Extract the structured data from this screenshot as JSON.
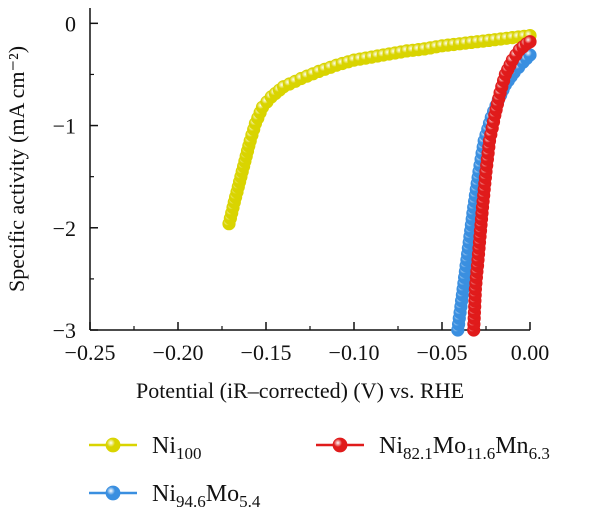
{
  "chart_data": {
    "type": "scatter",
    "xlabel": "Potential (iR–corrected) (V) vs. RHE",
    "ylabel": "Specific activity (mA cm⁻²)",
    "xlim": [
      -0.25,
      0.0
    ],
    "ylim": [
      -3.0,
      0.15
    ],
    "xticks": [
      -0.25,
      -0.2,
      -0.15,
      -0.1,
      -0.05,
      0.0
    ],
    "xtick_labels": [
      "−0.25",
      "−0.20",
      "−0.15",
      "−0.10",
      "−0.05",
      "0.00"
    ],
    "yticks": [
      0,
      -1,
      -2,
      -3
    ],
    "ytick_labels": [
      "0",
      "−1",
      "−2",
      "−3"
    ],
    "grid": false,
    "legend_position": "bottom",
    "series": [
      {
        "name": "Ni100",
        "name_parts": [
          [
            "Ni",
            ""
          ],
          [
            "100",
            "sub"
          ]
        ],
        "color": "#d9d400",
        "points": [
          [
            -0.171,
            -1.96
          ],
          [
            -0.168,
            -1.75
          ],
          [
            -0.165,
            -1.55
          ],
          [
            -0.162,
            -1.35
          ],
          [
            -0.159,
            -1.15
          ],
          [
            -0.156,
            -0.98
          ],
          [
            -0.152,
            -0.82
          ],
          [
            -0.147,
            -0.72
          ],
          [
            -0.14,
            -0.62
          ],
          [
            -0.13,
            -0.54
          ],
          [
            -0.12,
            -0.47
          ],
          [
            -0.11,
            -0.41
          ],
          [
            -0.1,
            -0.36
          ],
          [
            -0.09,
            -0.33
          ],
          [
            -0.08,
            -0.3
          ],
          [
            -0.07,
            -0.27
          ],
          [
            -0.06,
            -0.25
          ],
          [
            -0.05,
            -0.22
          ],
          [
            -0.04,
            -0.2
          ],
          [
            -0.03,
            -0.18
          ],
          [
            -0.02,
            -0.16
          ],
          [
            -0.01,
            -0.14
          ],
          [
            0.0,
            -0.12
          ]
        ]
      },
      {
        "name": "Ni94.6Mo5.4",
        "name_parts": [
          [
            "Ni",
            ""
          ],
          [
            "94.6",
            "sub"
          ],
          [
            "Mo",
            ""
          ],
          [
            "5.4",
            "sub"
          ]
        ],
        "color": "#3a8fe0",
        "points": [
          [
            -0.041,
            -3.0
          ],
          [
            -0.038,
            -2.6
          ],
          [
            -0.035,
            -2.2
          ],
          [
            -0.032,
            -1.8
          ],
          [
            -0.029,
            -1.45
          ],
          [
            -0.026,
            -1.15
          ],
          [
            -0.022,
            -0.92
          ],
          [
            -0.018,
            -0.75
          ],
          [
            -0.014,
            -0.6
          ],
          [
            -0.009,
            -0.48
          ],
          [
            -0.004,
            -0.38
          ],
          [
            0.0,
            -0.31
          ]
        ]
      },
      {
        "name": "Ni82.1Mo11.6Mn6.3",
        "name_parts": [
          [
            "Ni",
            ""
          ],
          [
            "82.1",
            "sub"
          ],
          [
            "Mo",
            ""
          ],
          [
            "11.6",
            "sub"
          ],
          [
            "Mn",
            ""
          ],
          [
            "6.3",
            "sub"
          ]
        ],
        "color": "#e01b1b",
        "points": [
          [
            -0.032,
            -3.0
          ],
          [
            -0.031,
            -2.6
          ],
          [
            -0.029,
            -2.2
          ],
          [
            -0.027,
            -1.8
          ],
          [
            -0.025,
            -1.45
          ],
          [
            -0.023,
            -1.15
          ],
          [
            -0.02,
            -0.9
          ],
          [
            -0.017,
            -0.68
          ],
          [
            -0.014,
            -0.5
          ],
          [
            -0.01,
            -0.36
          ],
          [
            -0.006,
            -0.26
          ],
          [
            -0.002,
            -0.2
          ],
          [
            0.0,
            -0.18
          ]
        ]
      }
    ]
  }
}
